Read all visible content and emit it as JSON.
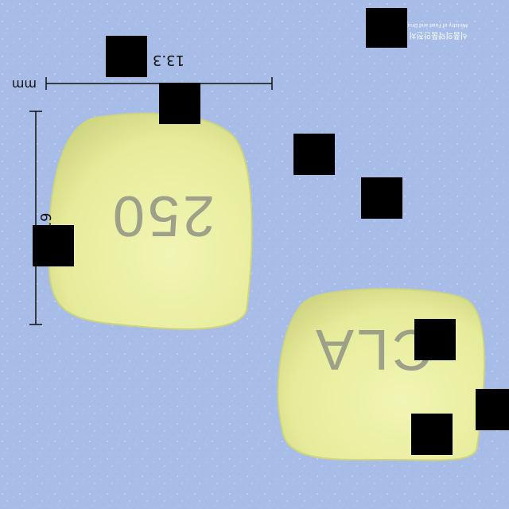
{
  "colors": {
    "background": "#a7bde8",
    "pill": "#e9ef9f",
    "pill_shadow": "#c7cf7a",
    "imprint": "#9ea08a",
    "redaction": "#000000",
    "ruler": "#111111"
  },
  "pill_front": {
    "imprint": "CLA"
  },
  "pill_back": {
    "imprint": "250"
  },
  "measurements": {
    "width": "13.3",
    "height": "8.9",
    "unit": "mm"
  },
  "watermark": {
    "agency_korean": "식품의약품안전처",
    "agency_english": "Ministry of Food and Drug Safety",
    "icon": "mfds-logo-icon"
  }
}
